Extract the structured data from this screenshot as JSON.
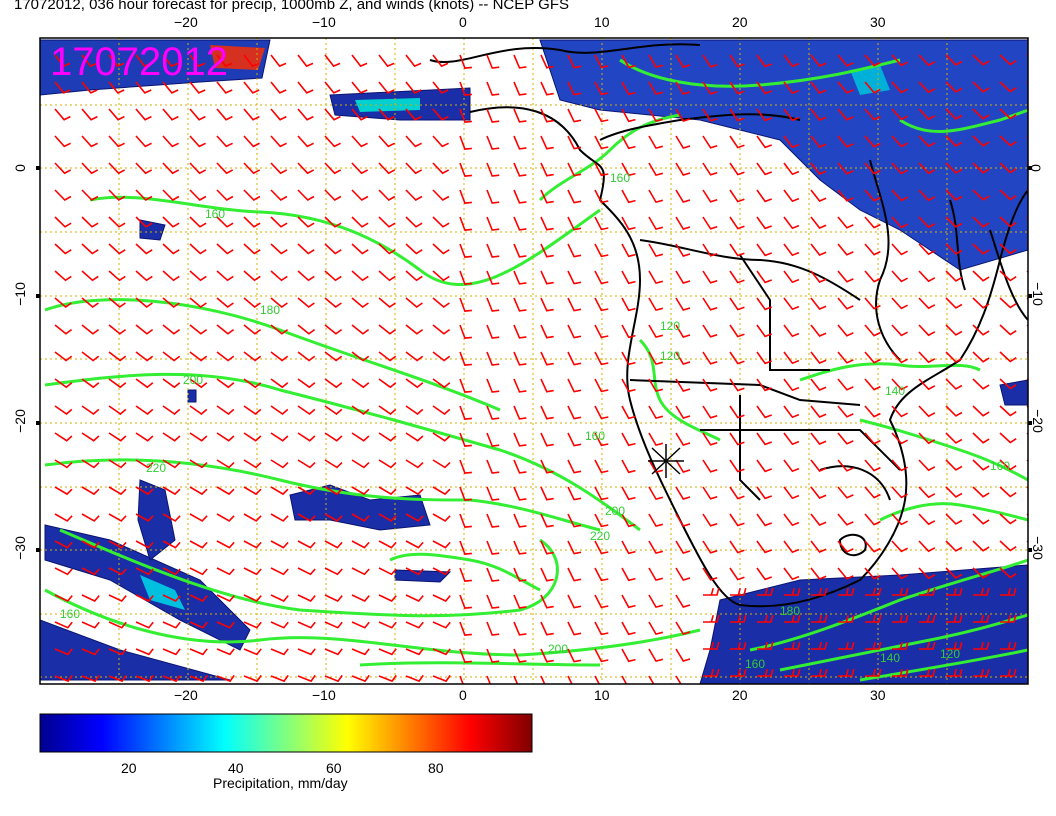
{
  "title": "17072012, 036 hour forecast for precip, 1000mb Z, and winds (knots) -- NCEP GFS",
  "stamp": "17072012",
  "lon_ticks": [
    "−20",
    "−10",
    "0",
    "10",
    "20",
    "30"
  ],
  "lat_ticks": [
    "0",
    "−10",
    "−20",
    "−30"
  ],
  "lat_ticks_right": [
    "0",
    "−10",
    "−20",
    "−30"
  ],
  "contour_labels": [
    "160",
    "180",
    "200",
    "220",
    "160",
    "120",
    "160",
    "200",
    "220",
    "120",
    "140",
    "160",
    "180",
    "200",
    "160",
    "140",
    "120",
    "160"
  ],
  "colorbar": {
    "title": "Precipitation, mm/day",
    "ticks": [
      "20",
      "40",
      "60",
      "80"
    ],
    "min": 0,
    "max": 100
  },
  "colors": {
    "wind": "#ff0000",
    "contour": "#33ee33",
    "coast": "#000000",
    "grid": "#d4b000",
    "stamp": "#ff00ff"
  },
  "legend": {
    "marker": "x-marker"
  }
}
